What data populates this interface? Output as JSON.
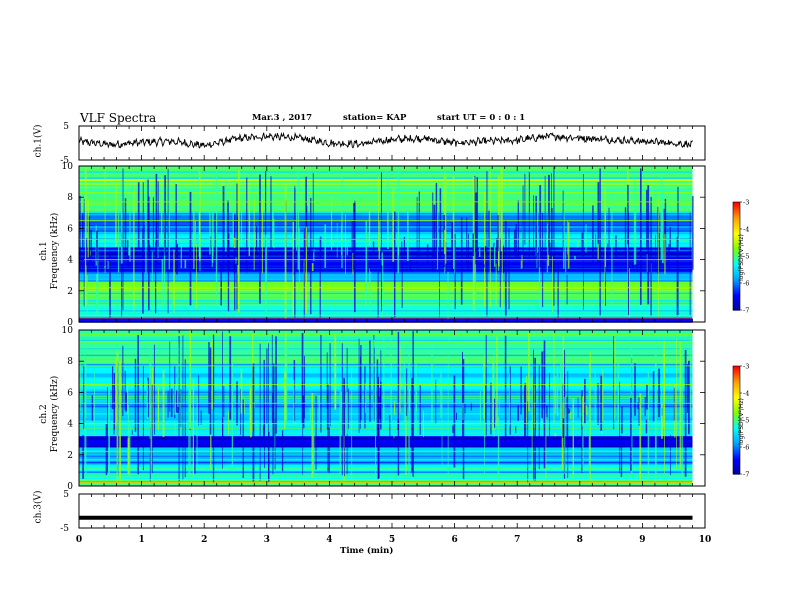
{
  "header": {
    "title": "VLF Spectra",
    "date": "Mar.3  , 2017",
    "station": "station= KAP",
    "start": "start  UT =   0 : 0  : 1"
  },
  "colors": {
    "waveform": "#000000",
    "colormap": [
      "#000000",
      "#00009a",
      "#0000ff",
      "#00a0ff",
      "#00ffff",
      "#7fff00",
      "#ffff00",
      "#ff9f00",
      "#ff0000",
      "#ffffff"
    ]
  },
  "chart_data": [
    {
      "type": "line",
      "ylabel": "ch.1(V)",
      "ylim": [
        -5,
        5
      ],
      "yticks": [
        "5",
        "-5"
      ],
      "xlim": [
        0,
        10
      ],
      "series": [
        {
          "values_description_free": true,
          "x": [
            0,
            0.5,
            1,
            1.5,
            2,
            2.5,
            3,
            3.5,
            4,
            4.5,
            5,
            5.5,
            6,
            6.5,
            7,
            7.5,
            8,
            8.5,
            9,
            9.5,
            9.8
          ],
          "values": [
            0.5,
            -0.5,
            0.2,
            0.5,
            -0.8,
            1.2,
            2.0,
            1.5,
            0.0,
            -0.3,
            1.0,
            1.4,
            0.0,
            0.5,
            0.8,
            2.0,
            1.5,
            1.0,
            0.5,
            0.0,
            -0.5
          ]
        }
      ]
    },
    {
      "type": "heatmap",
      "ylabel": "ch.1\nFrequency (kHz)",
      "xlim": [
        0,
        10
      ],
      "ylim": [
        0,
        10
      ],
      "yticks": [
        "0",
        "2",
        "4",
        "6",
        "8",
        "10"
      ],
      "data_end_min": 9.8,
      "colorbar": {
        "label": "log(PSD)(V²/Hz)",
        "range": [
          -7,
          -3
        ],
        "ticks": [
          "-3",
          "-4",
          "-5",
          "-6",
          "-7"
        ]
      },
      "bands": [
        {
          "from": 0.0,
          "to": 0.3,
          "level": 0.15
        },
        {
          "from": 0.3,
          "to": 1.2,
          "level": 0.45
        },
        {
          "from": 1.2,
          "to": 2.0,
          "level": 0.52
        },
        {
          "from": 2.0,
          "to": 2.6,
          "level": 0.55
        },
        {
          "from": 2.6,
          "to": 3.2,
          "level": 0.33
        },
        {
          "from": 3.2,
          "to": 4.8,
          "level": 0.12
        },
        {
          "from": 4.8,
          "to": 5.8,
          "level": 0.42
        },
        {
          "from": 5.8,
          "to": 7.0,
          "level": 0.25
        },
        {
          "from": 7.0,
          "to": 10.0,
          "level": 0.5
        }
      ]
    },
    {
      "type": "heatmap",
      "ylabel": "ch.2\nFrequency (kHz)",
      "xlim": [
        0,
        10
      ],
      "ylim": [
        0,
        10
      ],
      "yticks": [
        "0",
        "2",
        "4",
        "6",
        "8",
        "10"
      ],
      "data_end_min": 9.8,
      "colorbar": {
        "label": "log(PSD)(V²/Hz)",
        "range": [
          -7,
          -3
        ],
        "ticks": [
          "-3",
          "-4",
          "-5",
          "-6",
          "-7"
        ]
      },
      "bands": [
        {
          "from": 0.0,
          "to": 0.4,
          "level": 0.5
        },
        {
          "from": 0.4,
          "to": 1.5,
          "level": 0.42
        },
        {
          "from": 1.5,
          "to": 2.5,
          "level": 0.32
        },
        {
          "from": 2.5,
          "to": 3.2,
          "level": 0.12
        },
        {
          "from": 3.2,
          "to": 4.2,
          "level": 0.4
        },
        {
          "from": 4.2,
          "to": 6.0,
          "level": 0.35
        },
        {
          "from": 6.0,
          "to": 8.0,
          "level": 0.42
        },
        {
          "from": 8.0,
          "to": 10.0,
          "level": 0.48
        }
      ]
    },
    {
      "type": "line",
      "ylabel": "ch.3(V)",
      "ylim": [
        -5,
        5
      ],
      "yticks": [
        "5",
        "-5"
      ],
      "xlim": [
        0,
        10
      ],
      "xticks": [
        "0",
        "1",
        "2",
        "3",
        "4",
        "5",
        "6",
        "7",
        "8",
        "9",
        "10"
      ],
      "xlabel": "Time  (min)",
      "series": [
        {
          "x": [
            0,
            9.8
          ],
          "values": [
            -2,
            -2
          ]
        }
      ]
    }
  ]
}
